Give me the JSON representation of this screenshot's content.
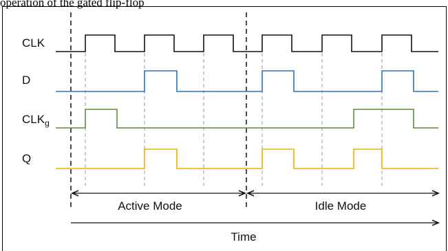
{
  "caption": "operation of the gated flip-flop",
  "signals": [
    {
      "name": "CLK",
      "color": "#111111",
      "row": 0
    },
    {
      "name": "D",
      "color": "#2a72b8",
      "row": 1
    },
    {
      "name": "CLK",
      "subscript": "g",
      "color": "#5e8a36",
      "row": 2
    },
    {
      "name": "Q",
      "color": "#e8b100",
      "row": 3
    }
  ],
  "modes": {
    "active_label": "Active Mode",
    "idle_label": "Idle Mode"
  },
  "time_label": "Time",
  "colors": {
    "clk": "#111111",
    "d": "#2a72b8",
    "clkg": "#5e8a36",
    "q": "#e8b100",
    "guide": "#999999",
    "axis": "#111111"
  }
}
